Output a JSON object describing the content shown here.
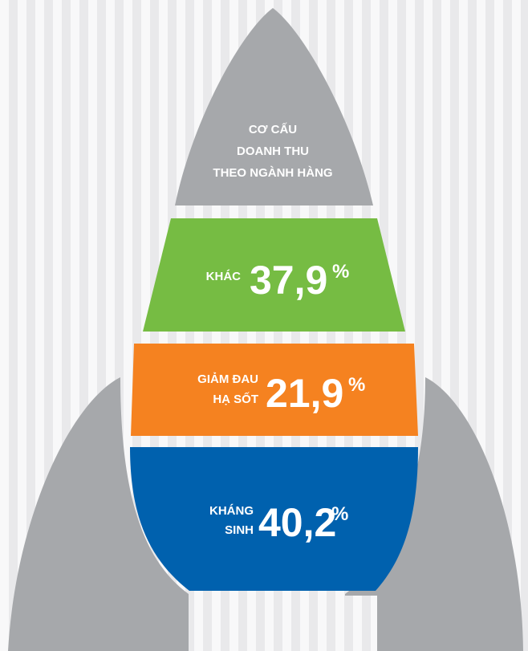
{
  "title": [
    "CƠ CẤU",
    "DOANH THU",
    "THEO NGÀNH HÀNG"
  ],
  "segments": [
    {
      "label": [
        "KHÁC"
      ],
      "value": "37,9",
      "unit": "%"
    },
    {
      "label": [
        "GIẢM ĐAU",
        "HẠ SỐT"
      ],
      "value": "21,9",
      "unit": "%"
    },
    {
      "label": [
        "KHÁNG",
        "SINH"
      ],
      "value": "40,2",
      "unit": "%"
    }
  ]
}
